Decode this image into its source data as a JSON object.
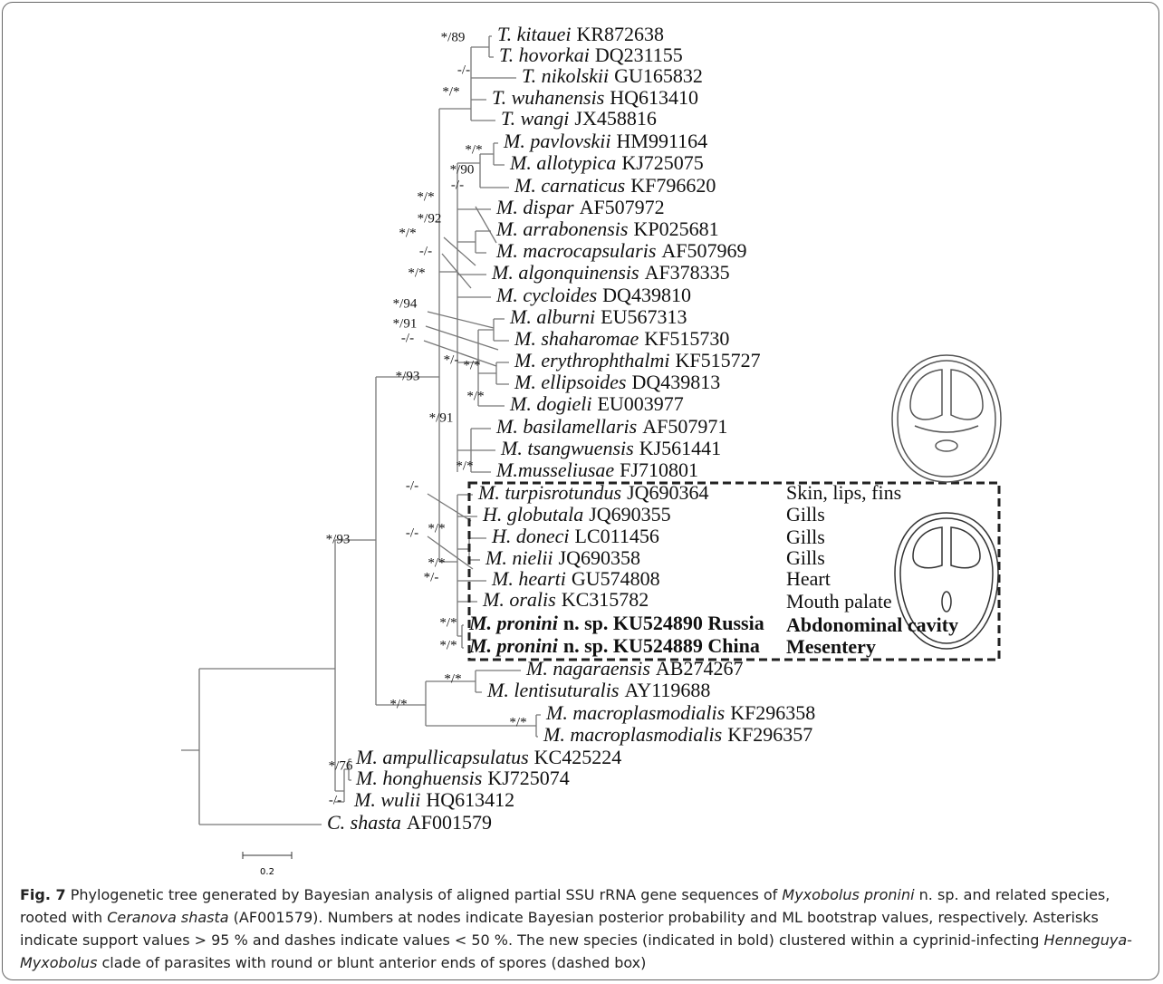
{
  "figure": {
    "taxa": [
      {
        "name": "T. kitauei",
        "accession": "KR872638"
      },
      {
        "name": "T. hovorkai",
        "accession": "DQ231155"
      },
      {
        "name": "T. nikolskii",
        "accession": "GU165832"
      },
      {
        "name": "T. wuhanensis",
        "accession": "HQ613410"
      },
      {
        "name": "T. wangi",
        "accession": "JX458816"
      },
      {
        "name": "M. pavlovskii",
        "accession": "HM991164"
      },
      {
        "name": "M. allotypica",
        "accession": "KJ725075"
      },
      {
        "name": "M. carnaticus",
        "accession": "KF796620"
      },
      {
        "name": "M. dispar",
        "accession": "AF507972"
      },
      {
        "name": "M. arrabonensis",
        "accession": "KP025681"
      },
      {
        "name": "M. macrocapsularis",
        "accession": "AF507969"
      },
      {
        "name": "M. algonquinensis",
        "accession": "AF378335"
      },
      {
        "name": "M. cycloides",
        "accession": "DQ439810"
      },
      {
        "name": "M. alburni",
        "accession": "EU567313"
      },
      {
        "name": "M. shaharomae",
        "accession": "KF515730"
      },
      {
        "name": "M. erythrophthalmi",
        "accession": "KF515727"
      },
      {
        "name": "M. ellipsoides",
        "accession": "DQ439813"
      },
      {
        "name": "M. dogieli",
        "accession": "EU003977"
      },
      {
        "name": "M. basilamellaris",
        "accession": "AF507971"
      },
      {
        "name": "M. tsangwuensis",
        "accession": "KJ561441"
      },
      {
        "name": "M.musseliusae",
        "accession": "FJ710801"
      },
      {
        "name": "M. turpisrotundus",
        "accession": "JQ690364"
      },
      {
        "name": "H. globutala",
        "accession": "JQ690355"
      },
      {
        "name": "H. doneci",
        "accession": "LC011456"
      },
      {
        "name": "M. nielii",
        "accession": "JQ690358"
      },
      {
        "name": "M. hearti",
        "accession": "GU574808"
      },
      {
        "name": "M. oralis",
        "accession": "KC315782"
      },
      {
        "name": "M. pronini",
        "accession": "n. sp. KU524890 Russia",
        "bold": true
      },
      {
        "name": "M. pronini",
        "accession": "n. sp. KU524889 China",
        "bold": true
      },
      {
        "name": "M. nagaraensis",
        "accession": "AB274267"
      },
      {
        "name": "M. lentisuturalis",
        "accession": "AY119688"
      },
      {
        "name": "M. macroplasmodialis",
        "accession": "KF296358"
      },
      {
        "name": "M. macroplasmodialis",
        "accession": "KF296357"
      },
      {
        "name": "M. ampullicapsulatus",
        "accession": "KC425224"
      },
      {
        "name": "M. honghuensis",
        "accession": "KJ725074"
      },
      {
        "name": "M. wulii",
        "accession": "HQ613412"
      },
      {
        "name": "C. shasta",
        "accession": "AF001579"
      }
    ],
    "tissues": [
      {
        "text": "Skin, lips, fins"
      },
      {
        "text": "Gills"
      },
      {
        "text": "Gills"
      },
      {
        "text": "Gills"
      },
      {
        "text": "Heart"
      },
      {
        "text": "Mouth palate"
      },
      {
        "text": "Abdonominal cavity",
        "bold": true
      },
      {
        "text": "Mesentery",
        "bold": true
      }
    ],
    "supports": [
      "*/89",
      "-/-",
      "*/*",
      "*/*",
      "*/90",
      "-/-",
      "*/*",
      "*/92",
      "*/*",
      "-/-",
      "*/*",
      "*/94",
      "*/91",
      "-/-",
      "*/-",
      "*/*",
      "*/*",
      "*/91",
      "*/*",
      "-/-",
      "-/-",
      "*/*",
      "*/*",
      "*/-",
      "*/*",
      "*/*",
      "*/93",
      "*/93",
      "*/*",
      "*/*",
      "*/*",
      "*/76",
      "-/-"
    ],
    "scale_bar": "0.2",
    "caption": {
      "label": "Fig. 7",
      "parts": [
        {
          "text": " Phylogenetic tree generated by Bayesian analysis of aligned partial SSU rRNA gene sequences of ",
          "italic": false
        },
        {
          "text": "Myxobolus pronini",
          "italic": true
        },
        {
          "text": " n. sp. and related species, rooted with ",
          "italic": false
        },
        {
          "text": "Ceranova shasta",
          "italic": true
        },
        {
          "text": " (AF001579). Numbers at nodes indicate Bayesian posterior probability and ML bootstrap values, respectively. Asterisks indicate support values > 95 % and dashes indicate values < 50 %. The new species (indicated in bold) clustered within a cyprinid-infecting ",
          "italic": false
        },
        {
          "text": "Henneguya-Myxobolus",
          "italic": true
        },
        {
          "text": " clade of parasites with round or blunt anterior ends of spores (dashed box)",
          "italic": false
        }
      ]
    }
  }
}
